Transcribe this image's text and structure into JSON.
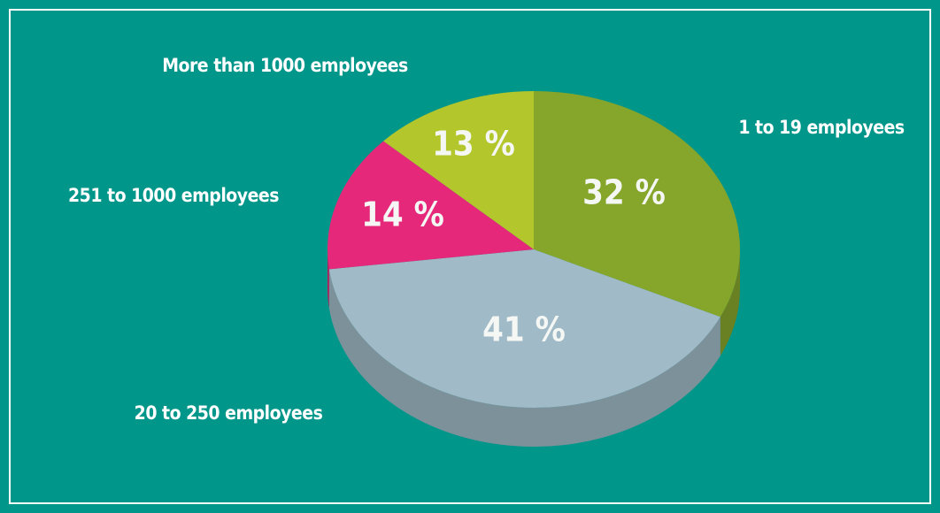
{
  "chart_data": {
    "type": "pie",
    "categories": [
      "1 to 19 employees",
      "20 to 250 employees",
      "251 to 1000 employees",
      "More than 1000 employees"
    ],
    "values": [
      32,
      41,
      14,
      13
    ],
    "value_labels": [
      "32 %",
      "41 %",
      "14 %",
      "13 %"
    ],
    "colors": [
      "#86a52b",
      "#a0bac7",
      "#e5287a",
      "#b3c62c"
    ]
  }
}
